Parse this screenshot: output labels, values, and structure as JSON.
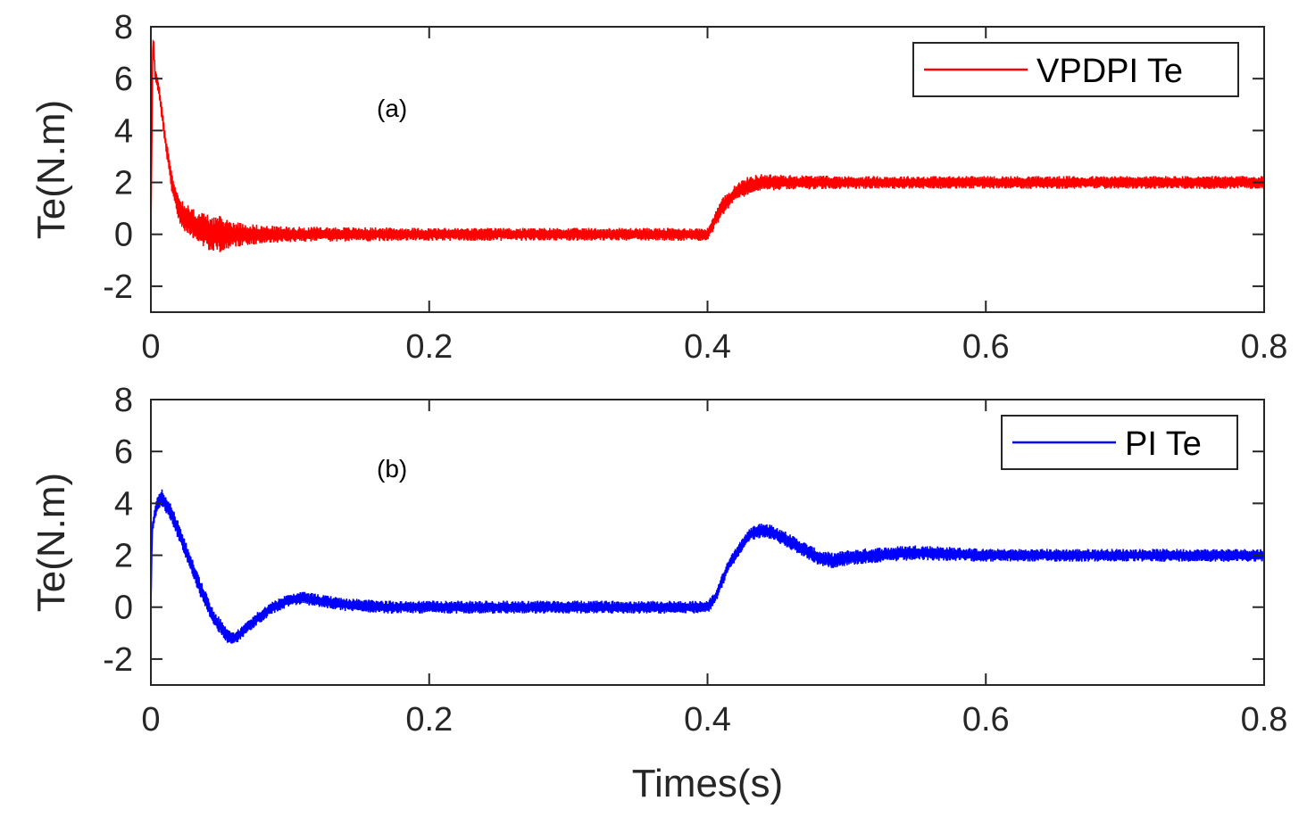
{
  "chart_data": [
    {
      "type": "line",
      "panel": "a",
      "annotation": "(a)",
      "ylabel": "Te(N.m)",
      "xlabel": "",
      "xlim": [
        0,
        0.8
      ],
      "ylim": [
        -3,
        8
      ],
      "xticks": [
        0,
        0.2,
        0.4,
        0.6,
        0.8
      ],
      "xtick_labels": [
        "0",
        "0.2",
        "0.4",
        "0.6",
        "0.8"
      ],
      "yticks": [
        -2,
        0,
        2,
        4,
        6,
        8
      ],
      "ytick_labels": [
        "-2",
        "0",
        "2",
        "4",
        "6",
        "8"
      ],
      "legend_position": "top-right",
      "series": [
        {
          "name": "VPDPI Te",
          "color": "#ff0000",
          "envelope": {
            "x": [
              0,
              0.0015,
              0.003,
              0.006,
              0.01,
              0.015,
              0.02,
              0.025,
              0.03,
              0.04,
              0.05,
              0.06,
              0.08,
              0.1,
              0.2,
              0.3,
              0.4,
              0.405,
              0.41,
              0.42,
              0.43,
              0.44,
              0.45,
              0.5,
              0.6,
              0.7,
              0.8
            ],
            "y": [
              0,
              7.8,
              6.2,
              5.5,
              3.8,
              2.0,
              1.0,
              0.6,
              0.4,
              0.1,
              0.0,
              0.0,
              0.0,
              0.0,
              0.0,
              0.0,
              0.0,
              0.5,
              1.0,
              1.6,
              1.9,
              2.0,
              2.0,
              2.0,
              2.0,
              2.0,
              2.0
            ],
            "amp": [
              0,
              0.2,
              0.2,
              0.3,
              0.3,
              0.4,
              0.5,
              0.6,
              0.6,
              0.7,
              0.7,
              0.5,
              0.35,
              0.3,
              0.25,
              0.25,
              0.25,
              0.3,
              0.35,
              0.35,
              0.35,
              0.35,
              0.3,
              0.25,
              0.25,
              0.25,
              0.25
            ]
          }
        }
      ]
    },
    {
      "type": "line",
      "panel": "b",
      "annotation": "(b)",
      "ylabel": "Te(N.m)",
      "xlabel": "Times(s)",
      "xlim": [
        0,
        0.8
      ],
      "ylim": [
        -3,
        8
      ],
      "xticks": [
        0,
        0.2,
        0.4,
        0.6,
        0.8
      ],
      "xtick_labels": [
        "0",
        "0.2",
        "0.4",
        "0.6",
        "0.8"
      ],
      "yticks": [
        -2,
        0,
        2,
        4,
        6,
        8
      ],
      "ytick_labels": [
        "-2",
        "0",
        "2",
        "4",
        "6",
        "8"
      ],
      "legend_position": "top-right",
      "series": [
        {
          "name": "PI Te",
          "color": "#0000ff",
          "envelope": {
            "x": [
              0,
              0.001,
              0.004,
              0.008,
              0.015,
              0.025,
              0.035,
              0.045,
              0.055,
              0.06,
              0.065,
              0.075,
              0.085,
              0.1,
              0.11,
              0.12,
              0.14,
              0.17,
              0.2,
              0.3,
              0.4,
              0.405,
              0.415,
              0.43,
              0.44,
              0.45,
              0.46,
              0.47,
              0.48,
              0.49,
              0.5,
              0.52,
              0.55,
              0.6,
              0.7,
              0.8
            ],
            "y": [
              0,
              3.0,
              3.9,
              4.2,
              3.6,
              2.2,
              0.8,
              -0.4,
              -1.1,
              -1.2,
              -1.0,
              -0.5,
              -0.1,
              0.3,
              0.35,
              0.25,
              0.1,
              0.0,
              0.0,
              0.0,
              0.0,
              0.3,
              1.6,
              2.8,
              3.0,
              2.8,
              2.5,
              2.2,
              1.9,
              1.8,
              1.9,
              2.0,
              2.1,
              2.0,
              2.0,
              2.0
            ],
            "amp": [
              0,
              0.2,
              0.3,
              0.35,
              0.35,
              0.35,
              0.35,
              0.3,
              0.3,
              0.25,
              0.25,
              0.25,
              0.25,
              0.25,
              0.25,
              0.25,
              0.25,
              0.25,
              0.25,
              0.25,
              0.25,
              0.25,
              0.25,
              0.25,
              0.3,
              0.3,
              0.3,
              0.3,
              0.3,
              0.3,
              0.3,
              0.3,
              0.3,
              0.25,
              0.25,
              0.25
            ]
          }
        }
      ]
    }
  ]
}
